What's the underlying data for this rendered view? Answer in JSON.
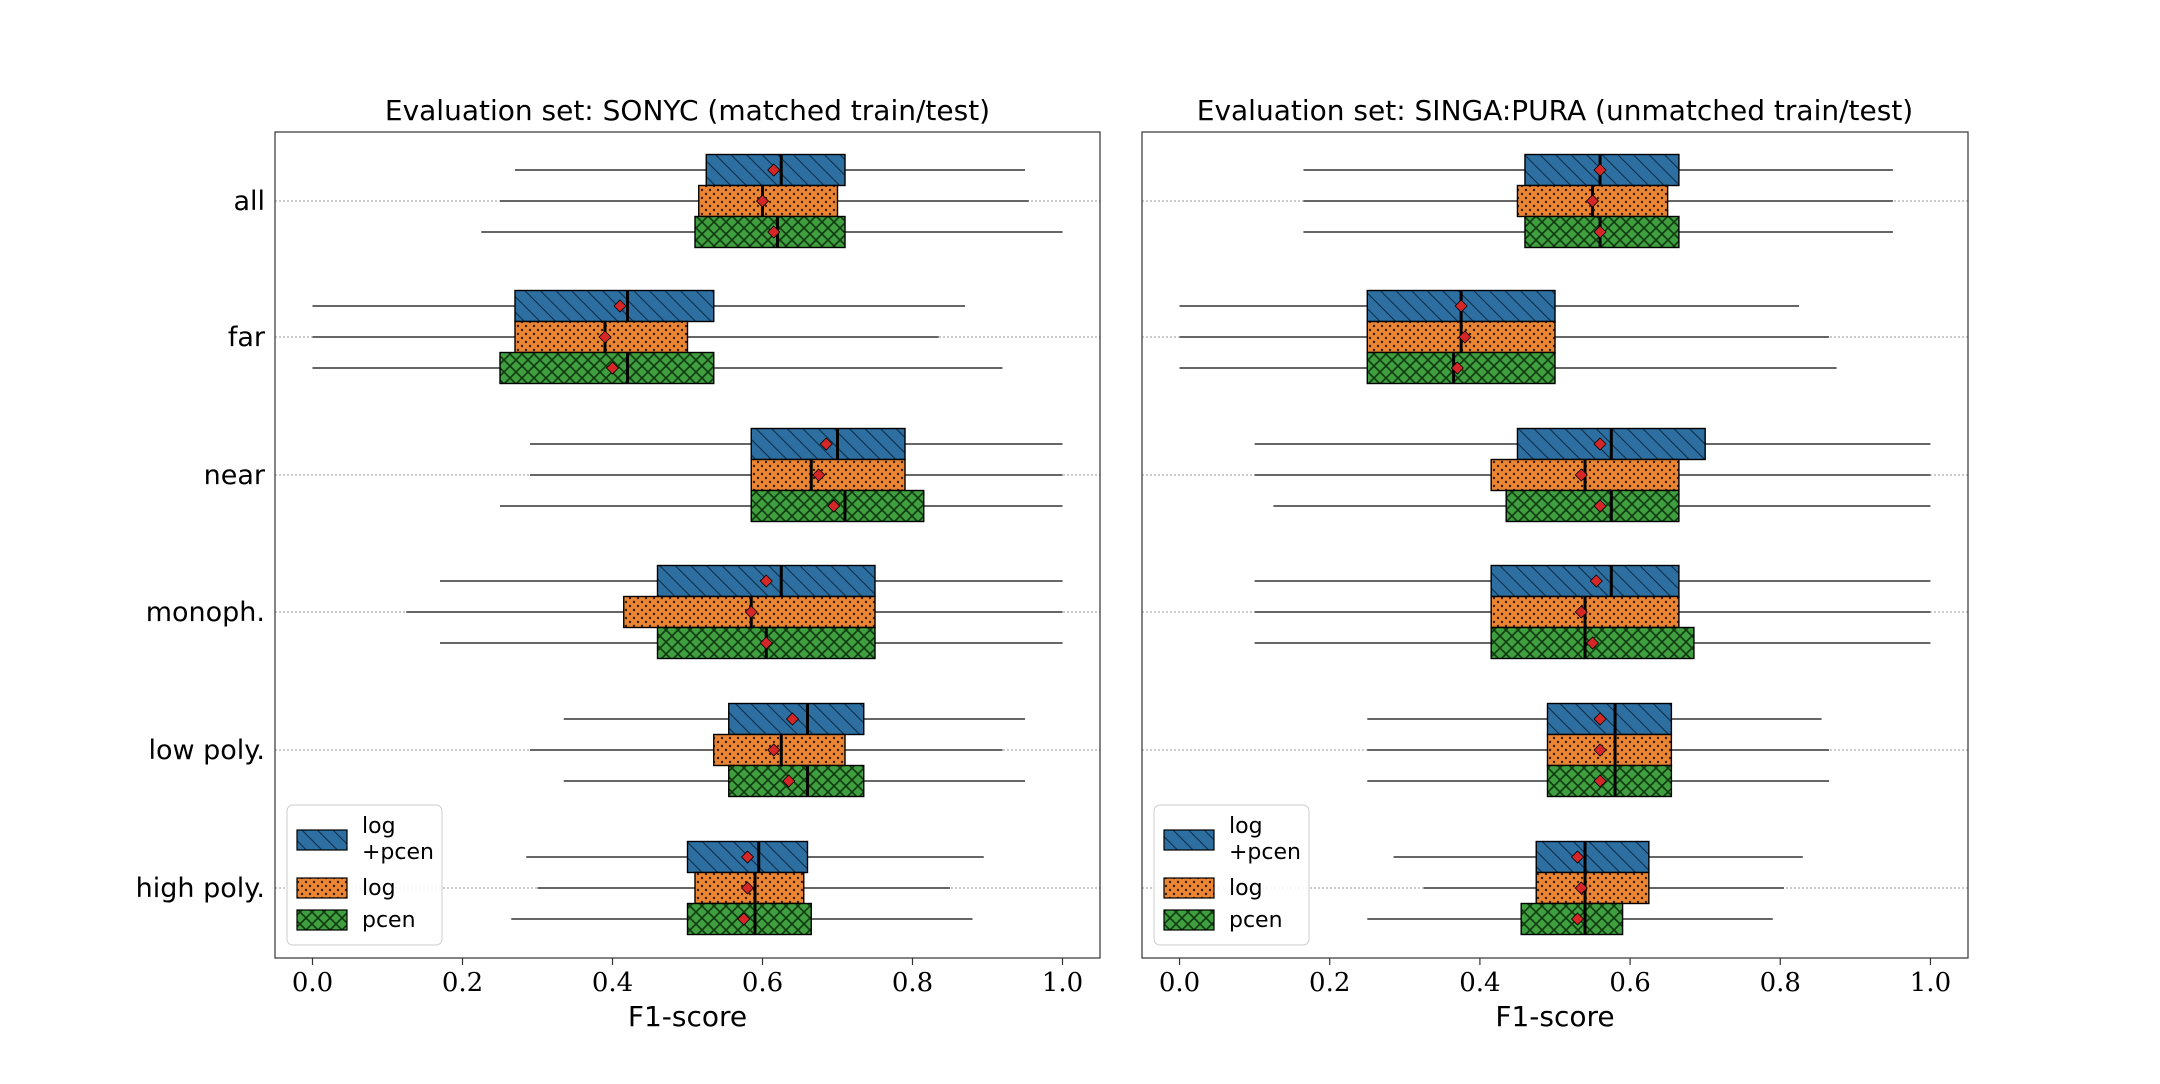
{
  "chart_data": [
    {
      "type": "boxplot",
      "title": "Evaluation set: SONYC (matched train/test)",
      "xlabel": "F1-score",
      "xlim": [
        -0.05,
        1.05
      ],
      "xticks": [
        "0.0",
        "0.2",
        "0.4",
        "0.6",
        "0.8",
        "1.0"
      ],
      "orientation": "horizontal",
      "categories": [
        "all",
        "far",
        "near",
        "monoph.",
        "low poly.",
        "high poly."
      ],
      "legend": {
        "placement": "lower-left",
        "entries": [
          "log\n+pcen",
          "log",
          "pcen"
        ]
      },
      "series": [
        {
          "name": "log +pcen",
          "boxes": [
            {
              "wmin": 0.27,
              "q1": 0.525,
              "median": 0.625,
              "q3": 0.71,
              "wmax": 0.95,
              "mean": 0.615
            },
            {
              "wmin": 0.0,
              "q1": 0.27,
              "median": 0.42,
              "q3": 0.535,
              "wmax": 0.87,
              "mean": 0.41
            },
            {
              "wmin": 0.29,
              "q1": 0.585,
              "median": 0.7,
              "q3": 0.79,
              "wmax": 1.0,
              "mean": 0.685
            },
            {
              "wmin": 0.17,
              "q1": 0.46,
              "median": 0.625,
              "q3": 0.75,
              "wmax": 1.0,
              "mean": 0.605
            },
            {
              "wmin": 0.335,
              "q1": 0.555,
              "median": 0.66,
              "q3": 0.735,
              "wmax": 0.95,
              "mean": 0.64
            },
            {
              "wmin": 0.285,
              "q1": 0.5,
              "median": 0.595,
              "q3": 0.66,
              "wmax": 0.895,
              "mean": 0.58
            }
          ]
        },
        {
          "name": "log",
          "boxes": [
            {
              "wmin": 0.25,
              "q1": 0.515,
              "median": 0.6,
              "q3": 0.7,
              "wmax": 0.955,
              "mean": 0.6
            },
            {
              "wmin": 0.0,
              "q1": 0.27,
              "median": 0.39,
              "q3": 0.5,
              "wmax": 0.835,
              "mean": 0.39
            },
            {
              "wmin": 0.29,
              "q1": 0.585,
              "median": 0.665,
              "q3": 0.79,
              "wmax": 1.0,
              "mean": 0.675
            },
            {
              "wmin": 0.125,
              "q1": 0.415,
              "median": 0.585,
              "q3": 0.75,
              "wmax": 1.0,
              "mean": 0.585
            },
            {
              "wmin": 0.29,
              "q1": 0.535,
              "median": 0.625,
              "q3": 0.71,
              "wmax": 0.92,
              "mean": 0.615
            },
            {
              "wmin": 0.3,
              "q1": 0.51,
              "median": 0.59,
              "q3": 0.655,
              "wmax": 0.85,
              "mean": 0.58
            }
          ]
        },
        {
          "name": "pcen",
          "boxes": [
            {
              "wmin": 0.225,
              "q1": 0.51,
              "median": 0.62,
              "q3": 0.71,
              "wmax": 1.0,
              "mean": 0.615
            },
            {
              "wmin": 0.0,
              "q1": 0.25,
              "median": 0.42,
              "q3": 0.535,
              "wmax": 0.92,
              "mean": 0.4
            },
            {
              "wmin": 0.25,
              "q1": 0.585,
              "median": 0.71,
              "q3": 0.815,
              "wmax": 1.0,
              "mean": 0.695
            },
            {
              "wmin": 0.17,
              "q1": 0.46,
              "median": 0.605,
              "q3": 0.75,
              "wmax": 1.0,
              "mean": 0.605
            },
            {
              "wmin": 0.335,
              "q1": 0.555,
              "median": 0.66,
              "q3": 0.735,
              "wmax": 0.95,
              "mean": 0.635
            },
            {
              "wmin": 0.265,
              "q1": 0.5,
              "median": 0.59,
              "q3": 0.665,
              "wmax": 0.88,
              "mean": 0.575
            }
          ]
        }
      ]
    },
    {
      "type": "boxplot",
      "title": "Evaluation set: SINGA:PURA (unmatched train/test)",
      "xlabel": "F1-score",
      "xlim": [
        -0.05,
        1.05
      ],
      "xticks": [
        "0.0",
        "0.2",
        "0.4",
        "0.6",
        "0.8",
        "1.0"
      ],
      "orientation": "horizontal",
      "categories": [
        "all",
        "far",
        "near",
        "monoph.",
        "low poly.",
        "high poly."
      ],
      "legend": {
        "placement": "lower-left",
        "entries": [
          "log\n+pcen",
          "log",
          "pcen"
        ]
      },
      "series": [
        {
          "name": "log +pcen",
          "boxes": [
            {
              "wmin": 0.165,
              "q1": 0.46,
              "median": 0.56,
              "q3": 0.665,
              "wmax": 0.95,
              "mean": 0.56
            },
            {
              "wmin": 0.0,
              "q1": 0.25,
              "median": 0.375,
              "q3": 0.5,
              "wmax": 0.825,
              "mean": 0.375
            },
            {
              "wmin": 0.1,
              "q1": 0.45,
              "median": 0.575,
              "q3": 0.7,
              "wmax": 1.0,
              "mean": 0.56
            },
            {
              "wmin": 0.1,
              "q1": 0.415,
              "median": 0.575,
              "q3": 0.665,
              "wmax": 1.0,
              "mean": 0.555
            },
            {
              "wmin": 0.25,
              "q1": 0.49,
              "median": 0.58,
              "q3": 0.655,
              "wmax": 0.855,
              "mean": 0.56
            },
            {
              "wmin": 0.285,
              "q1": 0.475,
              "median": 0.54,
              "q3": 0.625,
              "wmax": 0.83,
              "mean": 0.53
            }
          ]
        },
        {
          "name": "log",
          "boxes": [
            {
              "wmin": 0.165,
              "q1": 0.45,
              "median": 0.55,
              "q3": 0.65,
              "wmax": 0.95,
              "mean": 0.55
            },
            {
              "wmin": 0.0,
              "q1": 0.25,
              "median": 0.375,
              "q3": 0.5,
              "wmax": 0.865,
              "mean": 0.38
            },
            {
              "wmin": 0.1,
              "q1": 0.415,
              "median": 0.54,
              "q3": 0.665,
              "wmax": 1.0,
              "mean": 0.535
            },
            {
              "wmin": 0.1,
              "q1": 0.415,
              "median": 0.54,
              "q3": 0.665,
              "wmax": 1.0,
              "mean": 0.535
            },
            {
              "wmin": 0.25,
              "q1": 0.49,
              "median": 0.58,
              "q3": 0.655,
              "wmax": 0.865,
              "mean": 0.56
            },
            {
              "wmin": 0.325,
              "q1": 0.475,
              "median": 0.54,
              "q3": 0.625,
              "wmax": 0.805,
              "mean": 0.535
            }
          ]
        },
        {
          "name": "pcen",
          "boxes": [
            {
              "wmin": 0.165,
              "q1": 0.46,
              "median": 0.56,
              "q3": 0.665,
              "wmax": 0.95,
              "mean": 0.56
            },
            {
              "wmin": 0.0,
              "q1": 0.25,
              "median": 0.365,
              "q3": 0.5,
              "wmax": 0.875,
              "mean": 0.37
            },
            {
              "wmin": 0.125,
              "q1": 0.435,
              "median": 0.575,
              "q3": 0.665,
              "wmax": 1.0,
              "mean": 0.56
            },
            {
              "wmin": 0.1,
              "q1": 0.415,
              "median": 0.54,
              "q3": 0.685,
              "wmax": 1.0,
              "mean": 0.55
            },
            {
              "wmin": 0.25,
              "q1": 0.49,
              "median": 0.58,
              "q3": 0.655,
              "wmax": 0.865,
              "mean": 0.56
            },
            {
              "wmin": 0.25,
              "q1": 0.455,
              "median": 0.54,
              "q3": 0.59,
              "wmax": 0.79,
              "mean": 0.53
            }
          ]
        }
      ]
    }
  ],
  "colors": {
    "log +pcen": "#2e6fa1",
    "log": "#ea8533",
    "pcen": "#3f9e3f",
    "mean_marker": "#d62728"
  }
}
